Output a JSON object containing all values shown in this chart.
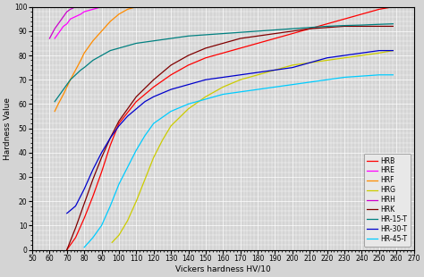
{
  "title": "",
  "xlabel": "Vickers hardness HV/10",
  "ylabel": "Hardness Value",
  "xlim": [
    50,
    270
  ],
  "ylim": [
    0,
    100
  ],
  "xticks": [
    50,
    60,
    70,
    80,
    90,
    100,
    110,
    120,
    130,
    140,
    150,
    160,
    170,
    180,
    190,
    200,
    210,
    220,
    230,
    240,
    250,
    260,
    270
  ],
  "yticks": [
    0,
    10,
    20,
    30,
    40,
    50,
    60,
    70,
    80,
    90,
    100
  ],
  "background_color": "#d4d4d4",
  "grid_color": "#ffffff",
  "series": [
    {
      "label": "HRB",
      "color": "#ff0000",
      "x": [
        70,
        75,
        80,
        85,
        90,
        95,
        100,
        110,
        120,
        130,
        140,
        150,
        160,
        170,
        180,
        190,
        200,
        210,
        220,
        230,
        240,
        250,
        258
      ],
      "y": [
        0,
        5,
        13,
        22,
        32,
        43,
        52,
        61,
        67,
        72,
        76,
        79,
        81,
        83,
        85,
        87,
        89,
        91,
        93,
        95,
        97,
        99,
        100
      ]
    },
    {
      "label": "HRE",
      "color": "#ff00ff",
      "x": [
        63,
        65,
        68,
        70,
        72,
        75,
        78,
        80,
        85,
        90,
        100,
        110
      ],
      "y": [
        87,
        89,
        92,
        93,
        95,
        96,
        97,
        98,
        99,
        100,
        100,
        100
      ]
    },
    {
      "label": "HRF",
      "color": "#ff8c00",
      "x": [
        63,
        65,
        68,
        70,
        72,
        75,
        78,
        80,
        85,
        90,
        95,
        100,
        105,
        110,
        115
      ],
      "y": [
        57,
        60,
        64,
        67,
        70,
        74,
        78,
        81,
        86,
        90,
        94,
        97,
        99,
        100,
        100
      ]
    },
    {
      "label": "HRG",
      "color": "#cccc00",
      "x": [
        96,
        100,
        105,
        110,
        115,
        120,
        125,
        130,
        140,
        150,
        160,
        170,
        180,
        190,
        200,
        210,
        220,
        230,
        240,
        250,
        258
      ],
      "y": [
        3,
        6,
        12,
        20,
        29,
        38,
        45,
        51,
        58,
        63,
        67,
        70,
        72,
        74,
        76,
        77,
        78,
        79,
        80,
        81,
        82
      ]
    },
    {
      "label": "HRH",
      "color": "#cc00cc",
      "x": [
        60,
        63,
        65,
        68,
        70,
        72,
        75,
        78
      ],
      "y": [
        87,
        91,
        93,
        96,
        98,
        99,
        100,
        100
      ]
    },
    {
      "label": "HRK",
      "color": "#800000",
      "x": [
        70,
        75,
        80,
        85,
        90,
        95,
        100,
        105,
        110,
        120,
        130,
        140,
        150,
        160,
        170,
        180,
        190,
        200,
        210,
        220,
        230,
        240,
        250,
        258
      ],
      "y": [
        0,
        9,
        19,
        29,
        38,
        46,
        53,
        58,
        63,
        70,
        76,
        80,
        83,
        85,
        87,
        88,
        89,
        90,
        91,
        91.5,
        92,
        92,
        92,
        92
      ]
    },
    {
      "label": "HR-15-T",
      "color": "#008080",
      "x": [
        63,
        65,
        68,
        70,
        72,
        75,
        78,
        80,
        85,
        90,
        95,
        100,
        110,
        120,
        130,
        140,
        150,
        160,
        170,
        180,
        190,
        200,
        210,
        220,
        230,
        240,
        250,
        258
      ],
      "y": [
        61,
        63,
        66,
        68,
        70,
        72,
        74,
        75,
        78,
        80,
        82,
        83,
        85,
        86,
        87,
        88,
        88.5,
        89,
        89.5,
        90,
        90.5,
        91,
        91.5,
        92,
        92.3,
        92.5,
        92.8,
        93
      ]
    },
    {
      "label": "HR-30-T",
      "color": "#0000cc",
      "x": [
        70,
        75,
        80,
        85,
        90,
        95,
        100,
        105,
        110,
        115,
        120,
        130,
        140,
        150,
        160,
        170,
        180,
        190,
        200,
        210,
        220,
        230,
        240,
        250,
        258
      ],
      "y": [
        15,
        18,
        25,
        33,
        40,
        46,
        51,
        55,
        58,
        61,
        63,
        66,
        68,
        70,
        71,
        72,
        73,
        74,
        75,
        77,
        79,
        80,
        81,
        82,
        82
      ]
    },
    {
      "label": "HR-45-T",
      "color": "#00ccff",
      "x": [
        80,
        85,
        90,
        95,
        100,
        105,
        110,
        115,
        120,
        130,
        140,
        150,
        160,
        170,
        180,
        190,
        200,
        210,
        220,
        230,
        240,
        250,
        258
      ],
      "y": [
        1,
        5,
        10,
        18,
        27,
        34,
        41,
        47,
        52,
        57,
        60,
        62,
        64,
        65,
        66,
        67,
        68,
        69,
        70,
        71,
        71.5,
        72,
        72
      ]
    }
  ],
  "legend": {
    "loc": "lower right",
    "fontsize": 5.5,
    "facecolor": "#e8e8e8",
    "edgecolor": "#888888",
    "handlelength": 1.5,
    "handletextpad": 0.4,
    "borderpad": 0.5,
    "labelspacing": 0.25
  }
}
